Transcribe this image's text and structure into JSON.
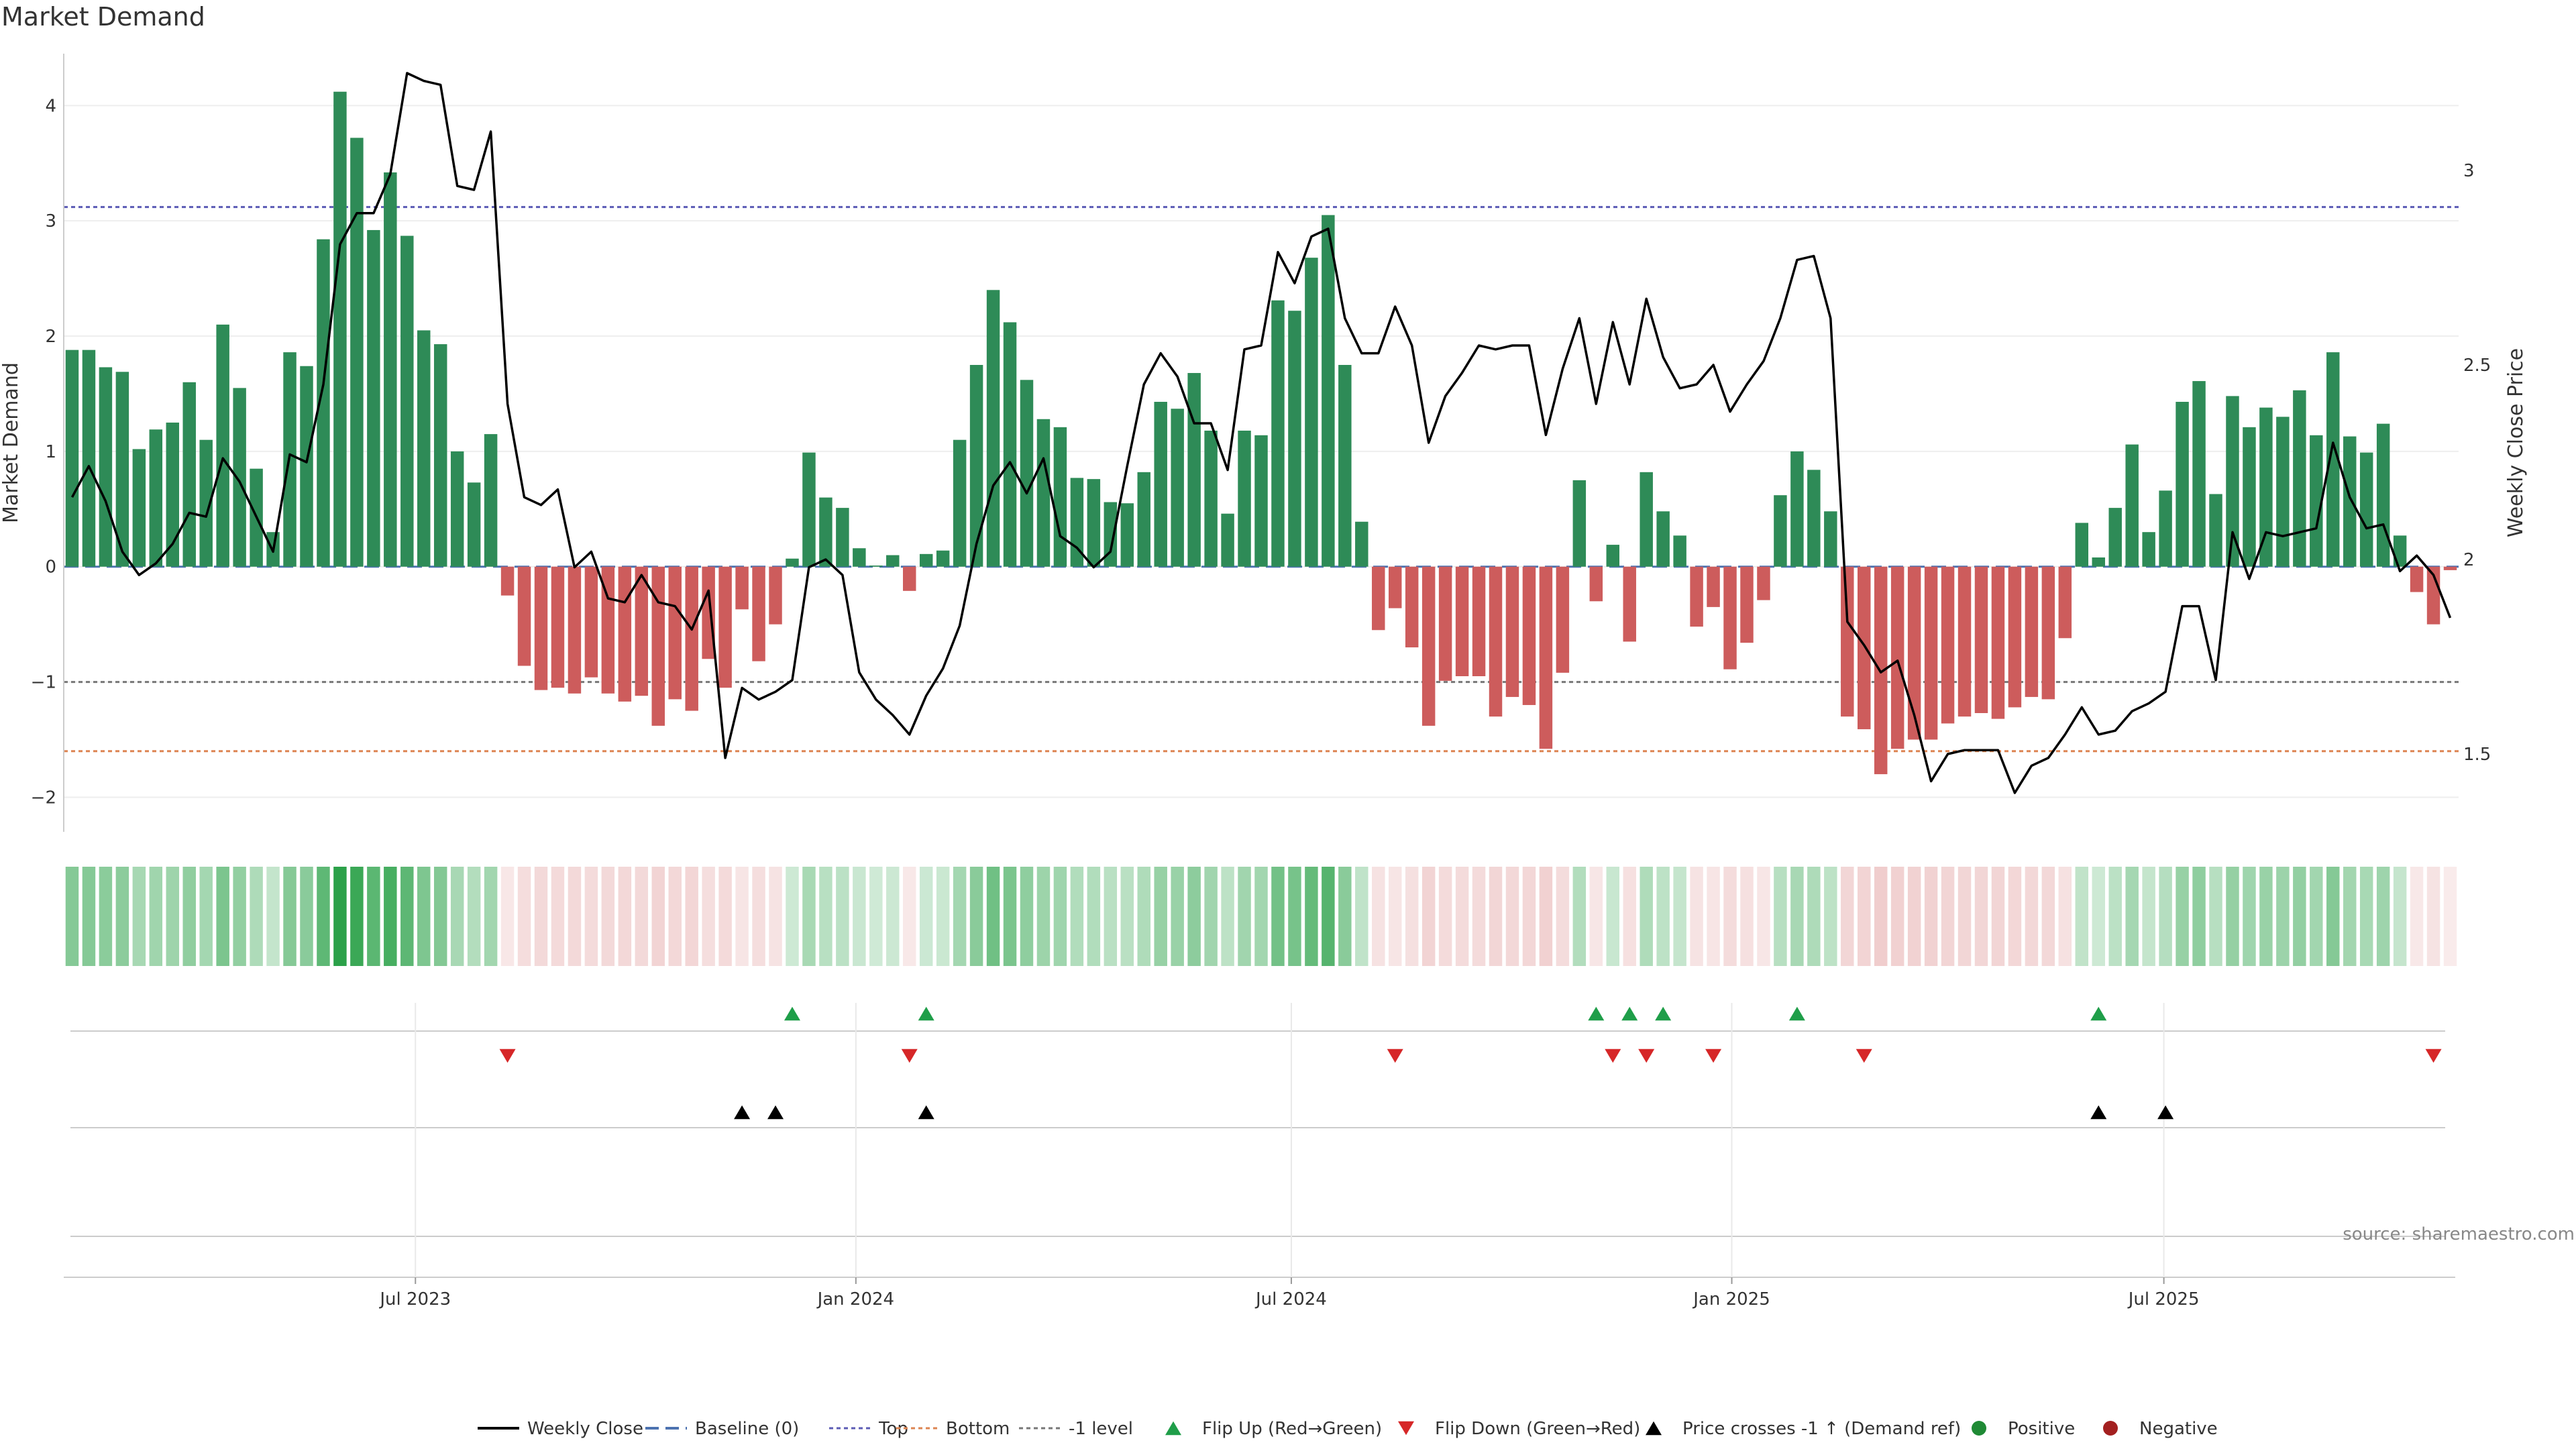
{
  "chart_data": {
    "type": "bar",
    "title": "Market Demand",
    "ylabel": "Market Demand",
    "y2label": "Weekly Close Price",
    "ylim": [
      -2.3,
      4.45
    ],
    "y2lim": [
      1.3,
      3.3
    ],
    "yticks": [
      -2,
      -1,
      0,
      1,
      2,
      3,
      4
    ],
    "yticklabels": [
      "−2",
      "−1",
      "0",
      "1",
      "2",
      "3",
      "4"
    ],
    "y2ticks": [
      1.5,
      2,
      2.5,
      3
    ],
    "y2ticklabels": [
      "1.5",
      "2",
      "2.5",
      "3"
    ],
    "xdomain": [
      0,
      144
    ],
    "xticks": [
      {
        "pos": 21,
        "label": "Jul 2023"
      },
      {
        "pos": 47.3,
        "label": "Jan 2024"
      },
      {
        "pos": 73.3,
        "label": "Jul 2024"
      },
      {
        "pos": 99.6,
        "label": "Jan 2025"
      },
      {
        "pos": 125.4,
        "label": "Jul 2025"
      }
    ],
    "reference_lines": [
      {
        "name": "Baseline (0)",
        "value": 0,
        "color": "#4c72b0"
      },
      {
        "name": "Top",
        "value": 3.12,
        "color": "#5b5bb5"
      },
      {
        "name": "Bottom",
        "value": -1.6,
        "color": "#dd8452"
      },
      {
        "name": "-1 level",
        "value": -1,
        "color": "#777777"
      }
    ],
    "demand": [
      1.88,
      1.88,
      1.73,
      1.69,
      1.02,
      1.19,
      1.25,
      1.6,
      1.1,
      2.1,
      1.55,
      0.85,
      0.3,
      1.86,
      1.74,
      2.84,
      4.12,
      3.72,
      2.92,
      3.42,
      2.87,
      2.05,
      1.93,
      1.0,
      0.73,
      1.15,
      -0.25,
      -0.86,
      -1.07,
      -1.05,
      -1.1,
      -0.96,
      -1.1,
      -1.17,
      -1.12,
      -1.38,
      -1.15,
      -1.25,
      -0.8,
      -1.05,
      -0.37,
      -0.82,
      -0.5,
      0.07,
      0.99,
      0.6,
      0.51,
      0.16,
      0.01,
      0.1,
      -0.21,
      0.11,
      0.14,
      1.1,
      1.75,
      2.4,
      2.12,
      1.62,
      1.28,
      1.21,
      0.77,
      0.76,
      0.56,
      0.55,
      0.82,
      1.43,
      1.37,
      1.68,
      1.18,
      0.46,
      1.18,
      1.14,
      2.31,
      2.22,
      2.68,
      3.05,
      1.75,
      0.39,
      -0.55,
      -0.36,
      -0.7,
      -1.38,
      -0.99,
      -0.95,
      -0.95,
      -1.3,
      -1.13,
      -1.2,
      -1.58,
      -0.92,
      0.75,
      -0.3,
      0.19,
      -0.65,
      0.82,
      0.48,
      0.27,
      -0.52,
      -0.35,
      -0.89,
      -0.66,
      -0.29,
      0.62,
      1.0,
      0.84,
      0.48,
      -1.3,
      -1.41,
      -1.8,
      -1.58,
      -1.5,
      -1.5,
      -1.36,
      -1.3,
      -1.27,
      -1.32,
      -1.22,
      -1.13,
      -1.15,
      -0.62,
      0.38,
      0.08,
      0.51,
      1.06,
      0.3,
      0.66,
      1.43,
      1.61,
      0.63,
      1.48,
      1.21,
      1.38,
      1.3,
      1.53,
      1.14,
      1.86,
      1.13,
      0.99,
      1.24,
      0.27,
      -0.22,
      -0.5,
      -0.03
    ],
    "price": [
      2.16,
      2.24,
      2.15,
      2.02,
      1.96,
      1.99,
      2.04,
      2.12,
      2.11,
      2.26,
      2.2,
      2.11,
      2.02,
      2.27,
      2.25,
      2.45,
      2.81,
      2.89,
      2.89,
      2.99,
      3.25,
      3.23,
      3.22,
      2.96,
      2.95,
      3.1,
      2.4,
      2.16,
      2.14,
      2.18,
      1.98,
      2.02,
      1.9,
      1.89,
      1.96,
      1.89,
      1.88,
      1.82,
      1.92,
      1.49,
      1.67,
      1.64,
      1.66,
      1.69,
      1.98,
      2.0,
      1.96,
      1.71,
      1.64,
      1.6,
      1.55,
      1.65,
      1.72,
      1.83,
      2.04,
      2.19,
      2.25,
      2.17,
      2.26,
      2.06,
      2.03,
      1.98,
      2.02,
      2.24,
      2.45,
      2.53,
      2.47,
      2.35,
      2.35,
      2.23,
      2.54,
      2.55,
      2.79,
      2.71,
      2.83,
      2.85,
      2.62,
      2.53,
      2.53,
      2.65,
      2.55,
      2.3,
      2.42,
      2.48,
      2.55,
      2.54,
      2.55,
      2.55,
      2.32,
      2.49,
      2.62,
      2.4,
      2.61,
      2.45,
      2.67,
      2.52,
      2.44,
      2.45,
      2.5,
      2.38,
      2.45,
      2.51,
      2.62,
      2.77,
      2.78,
      2.62,
      1.84,
      1.78,
      1.71,
      1.74,
      1.6,
      1.43,
      1.5,
      1.51,
      1.51,
      1.51,
      1.4,
      1.47,
      1.49,
      1.55,
      1.62,
      1.55,
      1.56,
      1.61,
      1.63,
      1.66,
      1.88,
      1.88,
      1.69,
      2.07,
      1.95,
      2.07,
      2.06,
      2.07,
      2.08,
      2.3,
      2.16,
      2.08,
      2.09,
      1.97,
      2.01,
      1.96,
      1.85
    ],
    "flip_up": [
      43,
      51,
      91,
      93,
      95,
      103,
      121
    ],
    "flip_down": [
      26,
      50,
      79,
      92,
      94,
      98,
      107,
      141
    ],
    "price_cross_up": [
      40,
      42,
      51,
      121,
      125
    ],
    "colors": {
      "positive": "#2e8b57",
      "negative": "#cd5c5c",
      "flip_up": "#1f9e49",
      "flip_down": "#d62728",
      "price_line": "#000000"
    },
    "legend": [
      {
        "label": "Weekly Close",
        "kind": "line"
      },
      {
        "label": "Baseline (0)",
        "kind": "baseline"
      },
      {
        "label": "Top",
        "kind": "top"
      },
      {
        "label": "Bottom",
        "kind": "bottom"
      },
      {
        "label": "-1 level",
        "kind": "minus1"
      },
      {
        "label": "Flip Up (Red→Green)",
        "kind": "up"
      },
      {
        "label": "Flip Down (Green→Red)",
        "kind": "down"
      },
      {
        "label": "Price crosses -1 ↑ (Demand ref)",
        "kind": "cross"
      },
      {
        "label": "Positive",
        "kind": "pos"
      },
      {
        "label": "Negative",
        "kind": "neg"
      }
    ],
    "source": "source: sharemaestro.com"
  }
}
